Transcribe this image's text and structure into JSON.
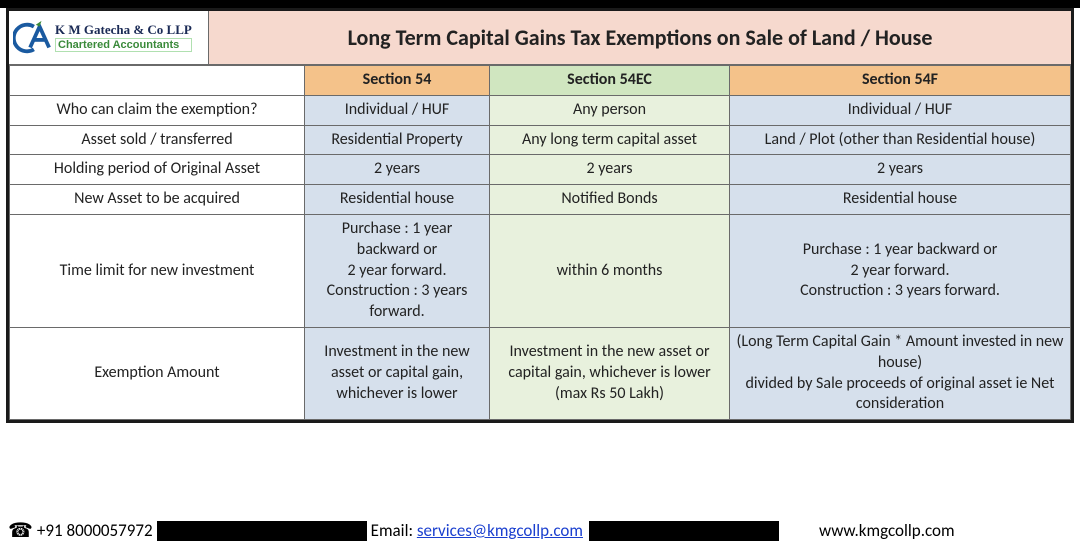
{
  "logo": {
    "firm_name": "K M Gatecha & Co LLP",
    "subtitle": "Chartered Accountants",
    "stroke_color": "#1a5aa0",
    "accent_color": "#3a8a3a"
  },
  "title": "Long Term Capital Gains Tax Exemptions on Sale of Land / House",
  "columns": {
    "blank": "",
    "s54": "Section 54",
    "s54ec": "Section 54EC",
    "s54f": "Section 54F"
  },
  "header_bg": {
    "s54": "#f4c28a",
    "s54ec": "#d0e6c0",
    "s54f": "#f4c28a"
  },
  "cell_bg": {
    "label": "#ffffff",
    "s54": "#d6e0ec",
    "s54ec": "#e8f1dd",
    "s54f": "#d6e0ec"
  },
  "rows": [
    {
      "label": "Who can claim the exemption?",
      "s54": "Individual / HUF",
      "s54ec": "Any person",
      "s54f": "Individual / HUF"
    },
    {
      "label": "Asset sold / transferred",
      "s54": "Residential Property",
      "s54ec": "Any long term capital asset",
      "s54f": "Land / Plot (other than Residential house)"
    },
    {
      "label": "Holding period of Original Asset",
      "s54": "2 years",
      "s54ec": "2 years",
      "s54f": "2 years"
    },
    {
      "label": "New Asset to be acquired",
      "s54": "Residential house",
      "s54ec": "Notified Bonds",
      "s54f": "Residential house"
    },
    {
      "label": "Time limit for new investment",
      "s54": "Purchase : 1 year backward or\n2 year forward.\nConstruction : 3 years forward.",
      "s54ec": "within 6 months",
      "s54f": "Purchase : 1 year backward or\n2 year forward.\nConstruction : 3 years forward."
    },
    {
      "label": "Exemption Amount",
      "s54": "Investment in the new asset or capital gain,\nwhichever is lower",
      "s54ec": "Investment in the new asset or capital gain, whichever is lower (max Rs 50 Lakh)",
      "s54f": "(Long Term Capital Gain * Amount invested in new house)\ndivided by Sale proceeds of original asset ie Net consideration"
    }
  ],
  "footer": {
    "phone": "+91 8000057972",
    "email_label": "Email: ",
    "email": "services@kmgcollp.com",
    "website": "www.kmgcollp.com"
  }
}
